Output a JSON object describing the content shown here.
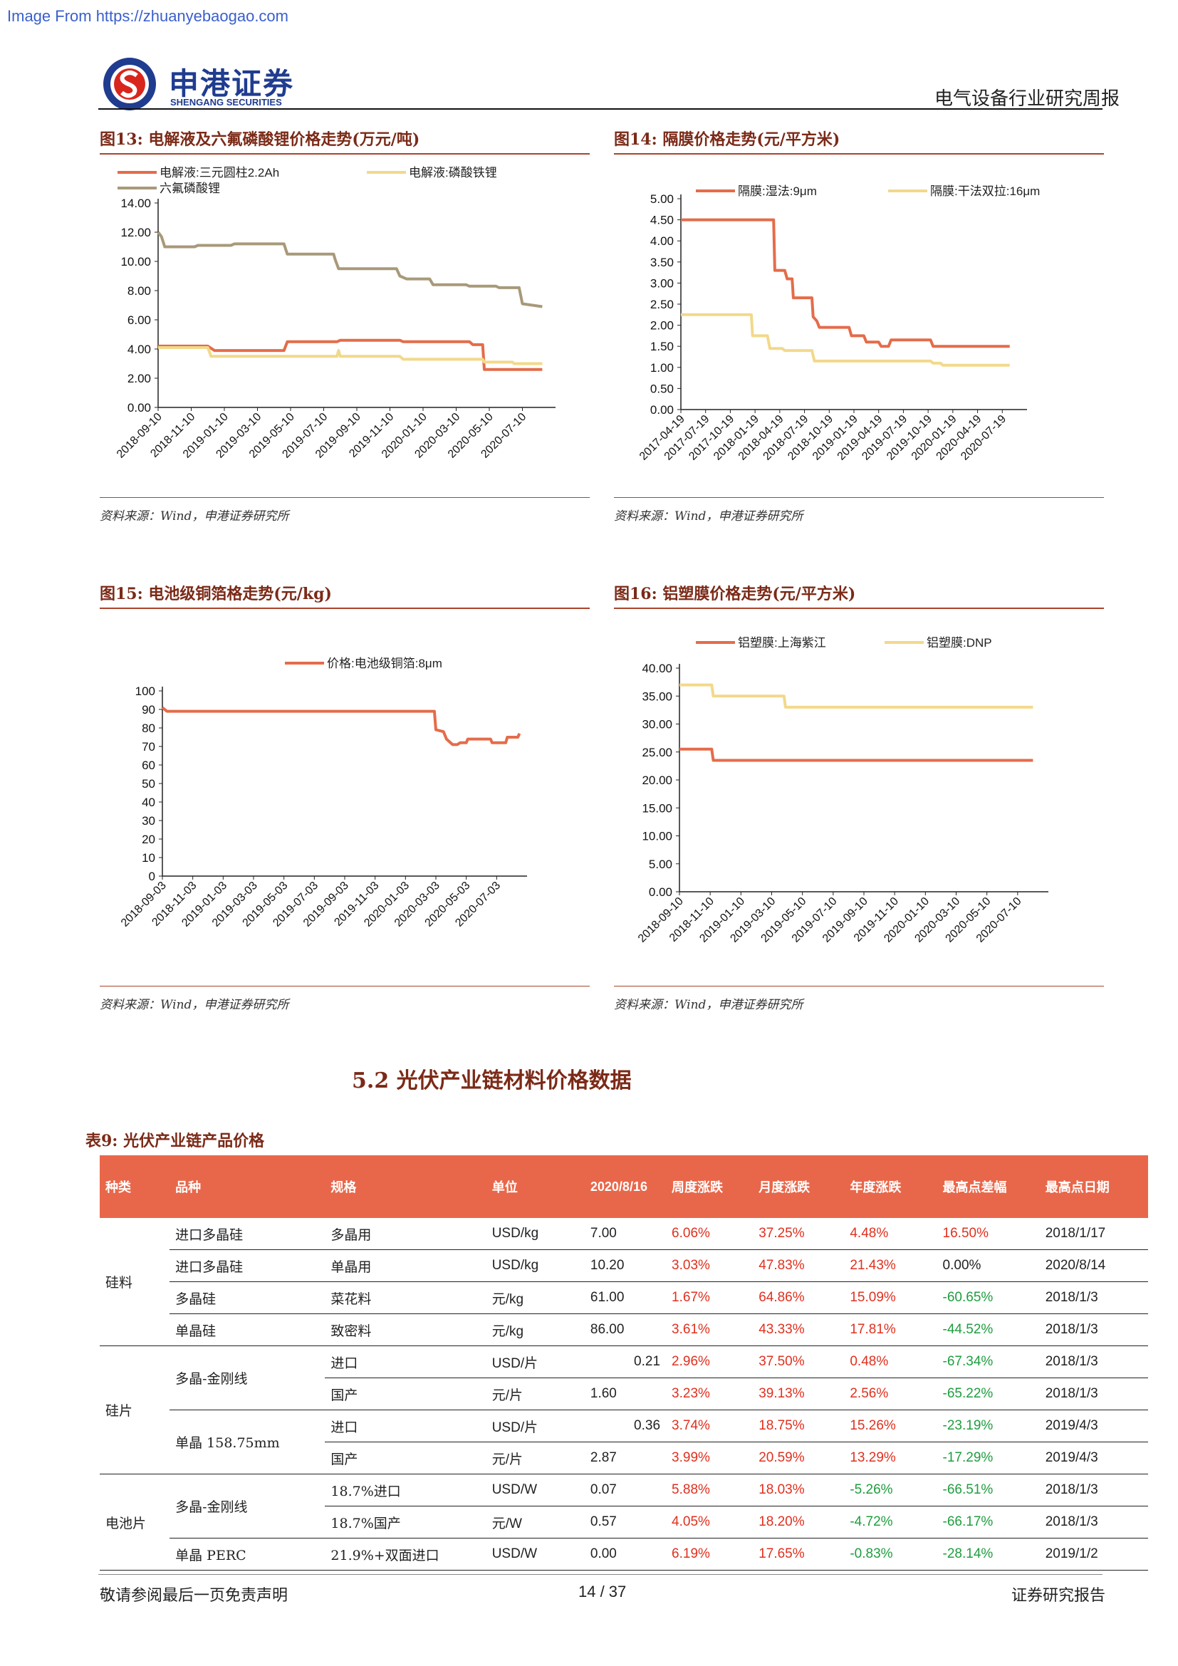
{
  "watermark": "Image From https://zhuanyebaogao.com",
  "header": {
    "logo_cn": "申港证券",
    "logo_en": "SHENGANG SECURITIES",
    "report_name": "电气设备行业研究周报"
  },
  "figures": {
    "f13": {
      "title": "图13:  电解液及六氟磷酸锂价格走势(万元/吨)",
      "source": "资料来源：Wind，申港证券研究所"
    },
    "f14": {
      "title": "图14:  隔膜价格走势(元/平方米)",
      "source": "资料来源：Wind，申港证券研究所"
    },
    "f15": {
      "title": "图15:  电池级铜箔格走势(元/kg)",
      "source": "资料来源：Wind，申港证券研究所"
    },
    "f16": {
      "title": "图16:  铝塑膜价格走势(元/平方米)",
      "source": "资料来源：Wind，申港证券研究所"
    }
  },
  "chart_data": [
    {
      "id": "f13",
      "type": "line",
      "x_ticks": [
        "2018-09-10",
        "2018-11-10",
        "2019-01-10",
        "2019-03-10",
        "2019-05-10",
        "2019-07-10",
        "2019-09-10",
        "2019-11-10",
        "2020-01-10",
        "2020-03-10",
        "2020-05-10",
        "2020-07-10"
      ],
      "y_ticks": [
        "0.00",
        "2.00",
        "4.00",
        "6.00",
        "8.00",
        "10.00",
        "12.00",
        "14.00"
      ],
      "ylim": [
        0,
        14
      ],
      "series": [
        {
          "name": "电解液:三元圆柱2.2Ah",
          "color": "#e46c4a",
          "points": [
            [
              0,
              4.2
            ],
            [
              1.5,
              4.2
            ],
            [
              1.7,
              3.9
            ],
            [
              3.8,
              3.9
            ],
            [
              3.9,
              4.5
            ],
            [
              5.4,
              4.5
            ],
            [
              5.5,
              4.6
            ],
            [
              7.3,
              4.6
            ],
            [
              7.4,
              4.5
            ],
            [
              9.4,
              4.5
            ],
            [
              9.5,
              4.3
            ],
            [
              9.8,
              4.3
            ],
            [
              9.85,
              2.6
            ],
            [
              11.6,
              2.6
            ]
          ]
        },
        {
          "name": "电解液:磷酸铁锂",
          "color": "#f2d98a",
          "points": [
            [
              0,
              4.1
            ],
            [
              1.5,
              4.1
            ],
            [
              1.6,
              3.5
            ],
            [
              5.4,
              3.5
            ],
            [
              5.45,
              3.9
            ],
            [
              5.5,
              3.5
            ],
            [
              7.3,
              3.5
            ],
            [
              7.4,
              3.3
            ],
            [
              9.8,
              3.3
            ],
            [
              9.85,
              3.1
            ],
            [
              10.7,
              3.1
            ],
            [
              10.75,
              3.0
            ],
            [
              11.6,
              3.0
            ]
          ]
        },
        {
          "name": "六氟磷酸锂",
          "color": "#a8997a",
          "points": [
            [
              0,
              12.0
            ],
            [
              0.1,
              11.7
            ],
            [
              0.2,
              11.0
            ],
            [
              1.1,
              11.0
            ],
            [
              1.2,
              11.1
            ],
            [
              2.2,
              11.1
            ],
            [
              2.3,
              11.2
            ],
            [
              3.8,
              11.2
            ],
            [
              3.9,
              10.5
            ],
            [
              5.3,
              10.5
            ],
            [
              5.35,
              10.1
            ],
            [
              5.45,
              9.5
            ],
            [
              7.2,
              9.5
            ],
            [
              7.3,
              9.0
            ],
            [
              7.5,
              8.8
            ],
            [
              8.2,
              8.8
            ],
            [
              8.3,
              8.4
            ],
            [
              9.3,
              8.4
            ],
            [
              9.4,
              8.3
            ],
            [
              10.2,
              8.3
            ],
            [
              10.3,
              8.2
            ],
            [
              10.9,
              8.2
            ],
            [
              11.0,
              7.1
            ],
            [
              11.3,
              7.0
            ],
            [
              11.6,
              6.9
            ]
          ]
        }
      ]
    },
    {
      "id": "f14",
      "type": "line",
      "x_ticks": [
        "2017-04-19",
        "2017-07-19",
        "2017-10-19",
        "2018-01-19",
        "2018-04-19",
        "2018-07-19",
        "2018-10-19",
        "2019-01-19",
        "2019-04-19",
        "2019-07-19",
        "2019-10-19",
        "2020-01-19",
        "2020-04-19",
        "2020-07-19"
      ],
      "y_ticks": [
        "0.00",
        "0.50",
        "1.00",
        "1.50",
        "2.00",
        "2.50",
        "3.00",
        "3.50",
        "4.00",
        "4.50",
        "5.00"
      ],
      "ylim": [
        0,
        5
      ],
      "series": [
        {
          "name": "隔膜:湿法:9μm",
          "color": "#e46c4a",
          "points": [
            [
              0,
              4.5
            ],
            [
              3.75,
              4.5
            ],
            [
              3.8,
              3.3
            ],
            [
              4.2,
              3.3
            ],
            [
              4.3,
              3.1
            ],
            [
              4.5,
              3.1
            ],
            [
              4.55,
              2.65
            ],
            [
              5.3,
              2.65
            ],
            [
              5.35,
              2.2
            ],
            [
              5.5,
              2.1
            ],
            [
              5.6,
              1.95
            ],
            [
              6.8,
              1.95
            ],
            [
              6.9,
              1.75
            ],
            [
              7.4,
              1.75
            ],
            [
              7.5,
              1.6
            ],
            [
              8.0,
              1.6
            ],
            [
              8.1,
              1.5
            ],
            [
              8.4,
              1.5
            ],
            [
              8.5,
              1.65
            ],
            [
              10.1,
              1.65
            ],
            [
              10.2,
              1.5
            ],
            [
              13.3,
              1.5
            ]
          ]
        },
        {
          "name": "隔膜:干法双拉:16μm",
          "color": "#f2d98a",
          "points": [
            [
              0,
              2.25
            ],
            [
              2.85,
              2.25
            ],
            [
              2.9,
              1.75
            ],
            [
              3.5,
              1.75
            ],
            [
              3.6,
              1.45
            ],
            [
              4.1,
              1.45
            ],
            [
              4.2,
              1.4
            ],
            [
              5.3,
              1.4
            ],
            [
              5.4,
              1.15
            ],
            [
              10.1,
              1.15
            ],
            [
              10.2,
              1.1
            ],
            [
              10.5,
              1.1
            ],
            [
              10.6,
              1.05
            ],
            [
              13.3,
              1.05
            ]
          ]
        }
      ]
    },
    {
      "id": "f15",
      "type": "line",
      "x_ticks": [
        "2018-09-03",
        "2018-11-03",
        "2019-01-03",
        "2019-03-03",
        "2019-05-03",
        "2019-07-03",
        "2019-09-03",
        "2019-11-03",
        "2020-01-03",
        "2020-03-03",
        "2020-05-03",
        "2020-07-03"
      ],
      "y_ticks": [
        "0",
        "10",
        "20",
        "30",
        "40",
        "50",
        "60",
        "70",
        "80",
        "90",
        "100"
      ],
      "ylim": [
        0,
        100
      ],
      "series": [
        {
          "name": "价格:电池级铜箔:8μm",
          "color": "#e46c4a",
          "points": [
            [
              0,
              91
            ],
            [
              0.15,
              89
            ],
            [
              8.95,
              89
            ],
            [
              9.0,
              79
            ],
            [
              9.25,
              78
            ],
            [
              9.35,
              74
            ],
            [
              9.55,
              71
            ],
            [
              9.7,
              71
            ],
            [
              9.8,
              72
            ],
            [
              10.0,
              72
            ],
            [
              10.05,
              74
            ],
            [
              10.8,
              74
            ],
            [
              10.85,
              72
            ],
            [
              11.3,
              72
            ],
            [
              11.35,
              75
            ],
            [
              11.7,
              75
            ],
            [
              11.75,
              77
            ]
          ]
        }
      ]
    },
    {
      "id": "f16",
      "type": "line",
      "x_ticks": [
        "2018-09-10",
        "2018-11-10",
        "2019-01-10",
        "2019-03-10",
        "2019-05-10",
        "2019-07-10",
        "2019-09-10",
        "2019-11-10",
        "2020-01-10",
        "2020-03-10",
        "2020-05-10",
        "2020-07-10"
      ],
      "y_ticks": [
        "0.00",
        "5.00",
        "10.00",
        "15.00",
        "20.00",
        "25.00",
        "30.00",
        "35.00",
        "40.00"
      ],
      "ylim": [
        0,
        40
      ],
      "series": [
        {
          "name": "铝塑膜:上海紫江",
          "color": "#e46c4a",
          "points": [
            [
              0,
              25.5
            ],
            [
              1.05,
              25.5
            ],
            [
              1.1,
              23.5
            ],
            [
              11.5,
              23.5
            ]
          ]
        },
        {
          "name": "铝塑膜:DNP",
          "color": "#f2d98a",
          "points": [
            [
              0,
              37
            ],
            [
              1.05,
              37
            ],
            [
              1.1,
              35
            ],
            [
              3.4,
              35
            ],
            [
              3.45,
              33
            ],
            [
              11.5,
              33
            ]
          ]
        }
      ]
    }
  ],
  "section": {
    "title": "5.2 光伏产业链材料价格数据"
  },
  "table": {
    "title": "表9:  光伏产业链产品价格",
    "headers": [
      "种类",
      "品种",
      "规格",
      "单位",
      "2020/8/16",
      "周度涨跌",
      "月度涨跌",
      "年度涨跌",
      "最高点差幅",
      "最高点日期"
    ],
    "categories": [
      "硅料",
      "硅片",
      "电池片"
    ],
    "varieties": [
      "进口多晶硅",
      "进口多晶硅",
      "多晶硅",
      "单晶硅",
      "多晶-金刚线",
      "单晶 158.75mm",
      "多晶-金刚线",
      "单晶 PERC"
    ],
    "rows": [
      [
        "多晶用",
        "USD/kg",
        "7.00",
        "6.06%",
        "37.25%",
        "4.48%",
        "16.50%",
        "2018/1/17"
      ],
      [
        "单晶用",
        "USD/kg",
        "10.20",
        "3.03%",
        "47.83%",
        "21.43%",
        "0.00%",
        "2020/8/14"
      ],
      [
        "菜花料",
        "元/kg",
        "61.00",
        "1.67%",
        "64.86%",
        "15.09%",
        "-60.65%",
        "2018/1/3"
      ],
      [
        "致密料",
        "元/kg",
        "86.00",
        "3.61%",
        "43.33%",
        "17.81%",
        "-44.52%",
        "2018/1/3"
      ],
      [
        "进口",
        "USD/片",
        "0.21",
        "2.96%",
        "37.50%",
        "0.48%",
        "-67.34%",
        "2018/1/3"
      ],
      [
        "国产",
        "元/片",
        "1.60",
        "3.23%",
        "39.13%",
        "2.56%",
        "-65.22%",
        "2018/1/3"
      ],
      [
        "进口",
        "USD/片",
        "0.36",
        "3.74%",
        "18.75%",
        "15.26%",
        "-23.19%",
        "2019/4/3"
      ],
      [
        "国产",
        "元/片",
        "2.87",
        "3.99%",
        "20.59%",
        "13.29%",
        "-17.29%",
        "2019/4/3"
      ],
      [
        "18.7%进口",
        "USD/W",
        "0.07",
        "5.88%",
        "18.03%",
        "-5.26%",
        "-66.51%",
        "2018/1/3"
      ],
      [
        "18.7%国产",
        "元/W",
        "0.57",
        "4.05%",
        "18.20%",
        "-4.72%",
        "-66.17%",
        "2018/1/3"
      ],
      [
        "21.9%+双面进口",
        "USD/W",
        "0.00",
        "6.19%",
        "17.65%",
        "-0.83%",
        "-28.14%",
        "2019/1/2"
      ]
    ]
  },
  "footer": {
    "left": "敬请参阅最后一页免责声明",
    "page": "14 / 37",
    "right": "证券研究报告"
  },
  "colors": {
    "accent": "#e8674a",
    "title": "#7b2a17",
    "up": "#e0301e",
    "down": "#1e9e3e",
    "logo_blue": "#1f3c8f",
    "logo_red": "#d9261c"
  }
}
